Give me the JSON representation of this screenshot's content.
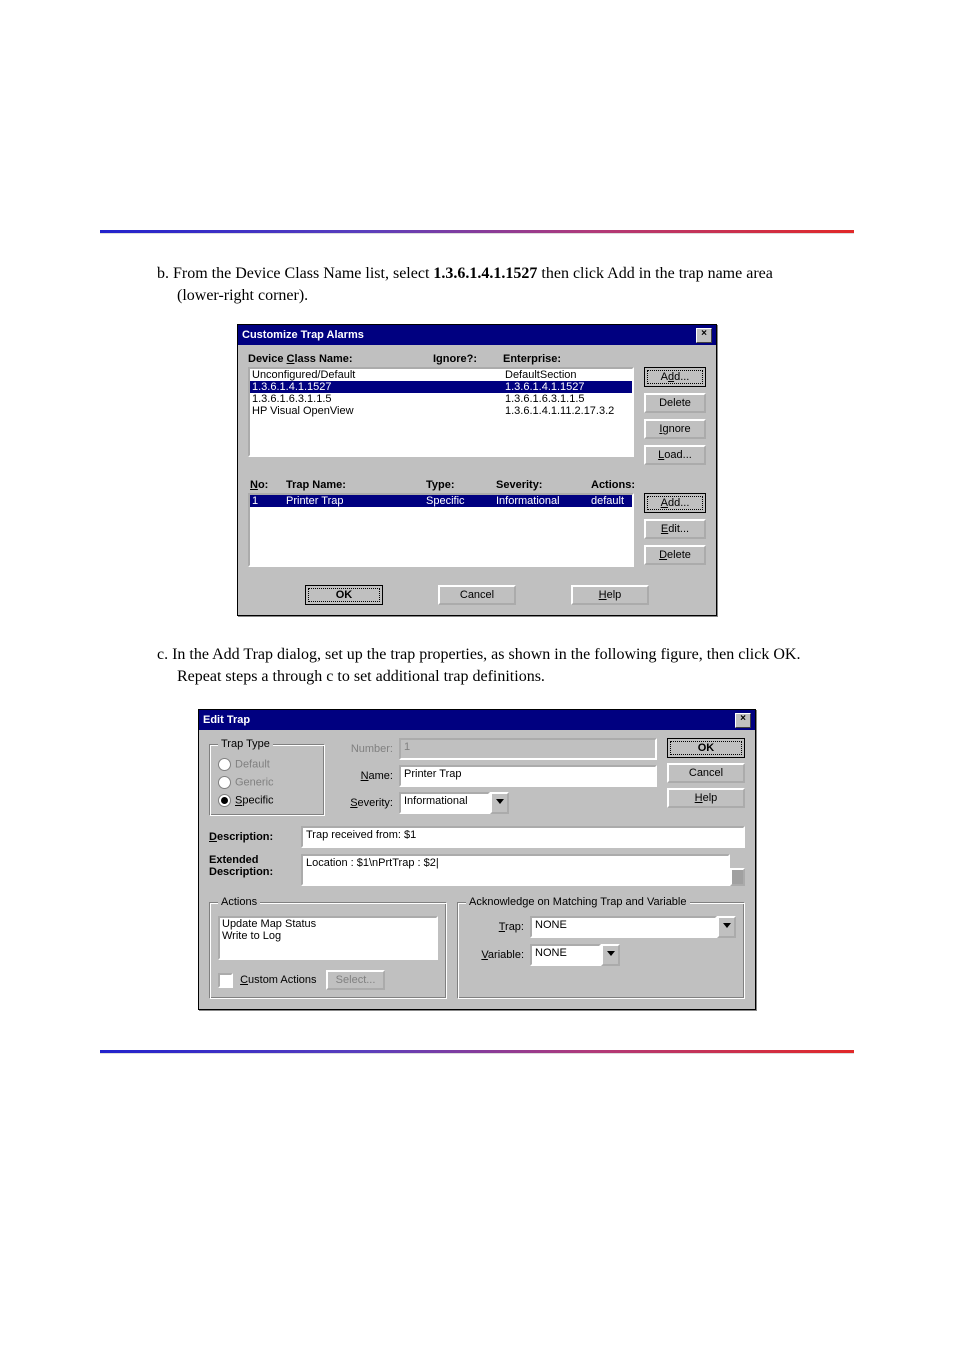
{
  "intro": {
    "p1_a": "b. From the Device Class Name list, select ",
    "p1_oid": "1.3.6.1.4.1.1527",
    "p1_b": " then click Add in the trap name area (lower-right corner).",
    "p2": "c. In the Add Trap dialog, set up the trap properties, as shown in the following figure, then click OK. Repeat steps a through c to set additional trap definitions."
  },
  "dlg1": {
    "title": "Customize Trap Alarms",
    "hdr_device": "Device Class Name:",
    "hdr_ignore": "Ignore?:",
    "hdr_enterprise": "Enterprise:",
    "devRows": [
      {
        "name": "Unconfigured/Default",
        "ent": "DefaultSection",
        "sel": false
      },
      {
        "name": "1.3.6.1.4.1.1527",
        "ent": "1.3.6.1.4.1.1527",
        "sel": true
      },
      {
        "name": "1.3.6.1.6.3.1.1.5",
        "ent": "1.3.6.1.6.3.1.1.5",
        "sel": false
      },
      {
        "name": "HP Visual OpenView",
        "ent": "1.3.6.1.4.1.11.2.17.3.2",
        "sel": false
      }
    ],
    "btns1": [
      {
        "label": "Add...",
        "u": "d",
        "default": true
      },
      {
        "label": "Delete",
        "u": "",
        "default": false
      },
      {
        "label": "Ignore",
        "u": "I",
        "default": false
      },
      {
        "label": "Load...",
        "u": "L",
        "default": false
      }
    ],
    "trapHdr": {
      "no": "No:",
      "name": "Trap Name:",
      "type": "Type:",
      "sev": "Severity:",
      "act": "Actions:"
    },
    "trapRows": [
      {
        "no": "1",
        "name": "Printer Trap",
        "type": "Specific",
        "sev": "Informational",
        "act": "default",
        "sel": true
      }
    ],
    "btns2": [
      {
        "label": "Add...",
        "u": "A",
        "default": true
      },
      {
        "label": "Edit...",
        "u": "E",
        "default": false
      },
      {
        "label": "Delete",
        "u": "D",
        "default": false
      }
    ],
    "bottom": {
      "ok": "OK",
      "cancel": "Cancel",
      "help": "Help"
    }
  },
  "dlg2": {
    "title": "Edit Trap",
    "trapTypeLegend": "Trap Type",
    "radios": [
      {
        "label": "Default",
        "dim": true,
        "sel": false
      },
      {
        "label": "Generic",
        "dim": true,
        "sel": false
      },
      {
        "label": "Specific",
        "dim": false,
        "sel": true,
        "u": "S"
      }
    ],
    "numberLbl": "Number:",
    "numberVal": "1",
    "nameLbl": "Name:",
    "nameVal": "Printer Trap",
    "sevLbl": "Severity:",
    "sevVal": "Informational",
    "descLbl": "Description:",
    "descVal": "Trap received from: $1",
    "extLbl1": "Extended",
    "extLbl2": "Description:",
    "extVal": "Location : $1\\nPrtTrap : $2|",
    "actionsLegend": "Actions",
    "actionsList": [
      "Update Map Status",
      "Write to Log"
    ],
    "ackLegend": "Acknowledge on Matching Trap and Variable",
    "trapLbl": "Trap:",
    "trapVal": "NONE",
    "varLbl": "Variable:",
    "varVal": "NONE",
    "customChk": "Custom Actions",
    "selectBtn": "Select...",
    "right": {
      "ok": "OK",
      "cancel": "Cancel",
      "help": "Help"
    }
  }
}
